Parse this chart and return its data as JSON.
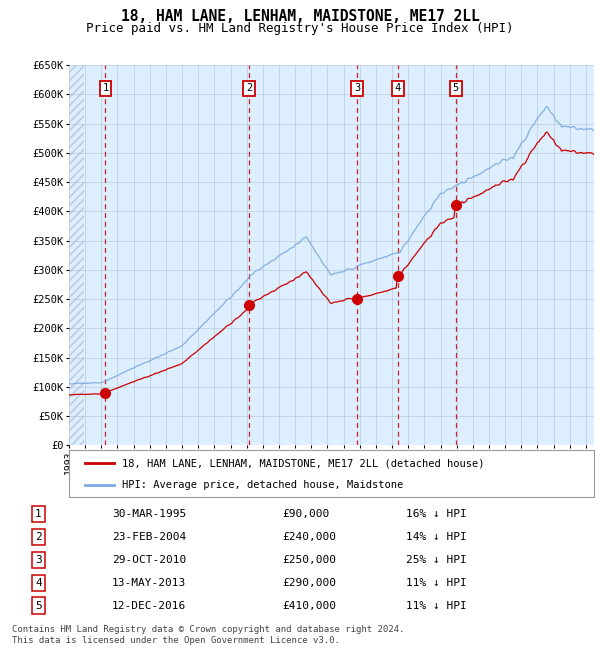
{
  "title": "18, HAM LANE, LENHAM, MAIDSTONE, ME17 2LL",
  "subtitle": "Price paid vs. HM Land Registry's House Price Index (HPI)",
  "title_fontsize": 10.5,
  "subtitle_fontsize": 9,
  "ylim": [
    0,
    650000
  ],
  "yticks": [
    0,
    50000,
    100000,
    150000,
    200000,
    250000,
    300000,
    350000,
    400000,
    450000,
    500000,
    550000,
    600000,
    650000
  ],
  "ytick_labels": [
    "£0",
    "£50K",
    "£100K",
    "£150K",
    "£200K",
    "£250K",
    "£300K",
    "£350K",
    "£400K",
    "£450K",
    "£500K",
    "£550K",
    "£600K",
    "£650K"
  ],
  "xlim_start": 1993.0,
  "xlim_end": 2025.5,
  "transactions": [
    {
      "label": "1",
      "date": 1995.25,
      "price": 90000
    },
    {
      "label": "2",
      "date": 2004.15,
      "price": 240000
    },
    {
      "label": "3",
      "date": 2010.83,
      "price": 250000
    },
    {
      "label": "4",
      "date": 2013.37,
      "price": 290000
    },
    {
      "label": "5",
      "date": 2016.95,
      "price": 410000
    }
  ],
  "transaction_info": [
    {
      "num": "1",
      "date": "30-MAR-1995",
      "price": "£90,000",
      "pct": "16% ↓ HPI"
    },
    {
      "num": "2",
      "date": "23-FEB-2004",
      "price": "£240,000",
      "pct": "14% ↓ HPI"
    },
    {
      "num": "3",
      "date": "29-OCT-2010",
      "price": "£250,000",
      "pct": "25% ↓ HPI"
    },
    {
      "num": "4",
      "date": "13-MAY-2013",
      "price": "£290,000",
      "pct": "11% ↓ HPI"
    },
    {
      "num": "5",
      "date": "12-DEC-2016",
      "price": "£410,000",
      "pct": "11% ↓ HPI"
    }
  ],
  "hpi_color": "#7aaadd",
  "sold_color": "#cc0000",
  "background_color": "#ddeeff",
  "grid_color": "#aabbcc",
  "hatch_color": "#b8c8d8",
  "footnote": "Contains HM Land Registry data © Crown copyright and database right 2024.\nThis data is licensed under the Open Government Licence v3.0.",
  "legend_label_sold": "18, HAM LANE, LENHAM, MAIDSTONE, ME17 2LL (detached house)",
  "legend_label_hpi": "HPI: Average price, detached house, Maidstone"
}
